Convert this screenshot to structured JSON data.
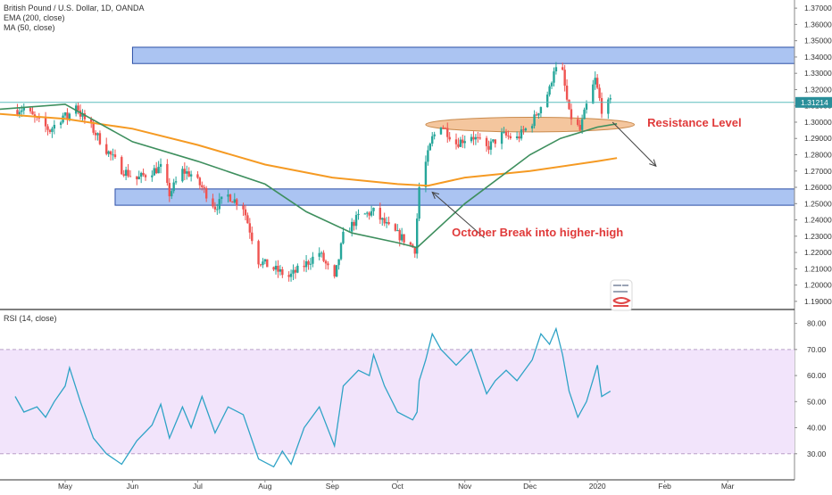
{
  "legend": {
    "symbol": "British Pound / U.S. Dollar, 1D, OANDA",
    "ema": "EMA (200, close)",
    "ma": "MA (50, close)"
  },
  "rsi_label": "RSI (14, close)",
  "colors": {
    "up": "#26a69a",
    "down": "#ef5350",
    "ema": "#f59a23",
    "ma": "#3e8f5e",
    "zone_fill": "#8fb0ee",
    "zone_stroke": "#2b4fa6",
    "ellipse_fill": "#f0b37e",
    "ellipse_stroke": "#c98a4c",
    "annotation": "#e03a3a",
    "rsi": "#2fa3c6",
    "rsi_band": "#f2e4fb",
    "price_line": "#5bbdbd",
    "price_tag": "#2a8f9a"
  },
  "chart_data": [
    {
      "type": "candlestick",
      "title": "British Pound / U.S. Dollar, 1D, OANDA",
      "x_labels": [
        "May",
        "Jun",
        "Jul",
        "Aug",
        "Sep",
        "Oct",
        "Nov",
        "Dec",
        "2020",
        "Feb",
        "Mar"
      ],
      "y_ticks": [
        "1.37000",
        "1.36000",
        "1.35000",
        "1.34000",
        "1.33000",
        "1.32000",
        "1.31000",
        "1.30000",
        "1.29000",
        "1.28000",
        "1.27000",
        "1.26000",
        "1.25000",
        "1.24000",
        "1.23000",
        "1.22000",
        "1.21000",
        "1.20000",
        "1.19000"
      ],
      "ylim": [
        1.185,
        1.375
      ],
      "last_price": "1.31214",
      "close_path": [
        [
          "2019-04-08",
          1.3075
        ],
        [
          "2019-04-12",
          1.3085
        ],
        [
          "2019-04-18",
          1.301
        ],
        [
          "2019-04-24",
          1.295
        ],
        [
          "2019-04-30",
          1.304
        ],
        [
          "2019-05-02",
          1.303
        ],
        [
          "2019-05-06",
          1.3115
        ],
        [
          "2019-05-08",
          1.305
        ],
        [
          "2019-05-14",
          1.295
        ],
        [
          "2019-05-20",
          1.283
        ],
        [
          "2019-05-27",
          1.271
        ],
        [
          "2019-06-03",
          1.265
        ],
        [
          "2019-06-10",
          1.27
        ],
        [
          "2019-06-14",
          1.272
        ],
        [
          "2019-06-18",
          1.256
        ],
        [
          "2019-06-24",
          1.27
        ],
        [
          "2019-06-28",
          1.268
        ],
        [
          "2019-07-03",
          1.26
        ],
        [
          "2019-07-09",
          1.248
        ],
        [
          "2019-07-15",
          1.255
        ],
        [
          "2019-07-22",
          1.248
        ],
        [
          "2019-07-29",
          1.215
        ],
        [
          "2019-08-05",
          1.21
        ],
        [
          "2019-08-12",
          1.205
        ],
        [
          "2019-08-19",
          1.212
        ],
        [
          "2019-08-26",
          1.22
        ],
        [
          "2019-09-02",
          1.203
        ],
        [
          "2019-09-06",
          1.23
        ],
        [
          "2019-09-13",
          1.242
        ],
        [
          "2019-09-20",
          1.245
        ],
        [
          "2019-09-27",
          1.235
        ],
        [
          "2019-10-04",
          1.228
        ],
        [
          "2019-10-09",
          1.222
        ],
        [
          "2019-10-11",
          1.26
        ],
        [
          "2019-10-17",
          1.29
        ],
        [
          "2019-10-21",
          1.299
        ],
        [
          "2019-10-28",
          1.287
        ],
        [
          "2019-11-04",
          1.292
        ],
        [
          "2019-11-11",
          1.284
        ],
        [
          "2019-11-18",
          1.292
        ],
        [
          "2019-11-25",
          1.29
        ],
        [
          "2019-12-02",
          1.3
        ],
        [
          "2019-12-06",
          1.31
        ],
        [
          "2019-12-10",
          1.32
        ],
        [
          "2019-12-12",
          1.333
        ],
        [
          "2019-12-16",
          1.33
        ],
        [
          "2019-12-19",
          1.305
        ],
        [
          "2019-12-24",
          1.295
        ],
        [
          "2019-12-27",
          1.31
        ],
        [
          "2019-12-31",
          1.326
        ],
        [
          "2020-01-03",
          1.308
        ],
        [
          "2020-01-07",
          1.3121
        ]
      ],
      "ema200": [
        [
          "2019-04-01",
          1.305
        ],
        [
          "2019-05-01",
          1.302
        ],
        [
          "2019-06-01",
          1.296
        ],
        [
          "2019-07-01",
          1.286
        ],
        [
          "2019-08-01",
          1.274
        ],
        [
          "2019-09-01",
          1.266
        ],
        [
          "2019-10-01",
          1.262
        ],
        [
          "2019-10-15",
          1.261
        ],
        [
          "2019-11-01",
          1.266
        ],
        [
          "2019-12-01",
          1.27
        ],
        [
          "2020-01-01",
          1.276
        ],
        [
          "2020-01-10",
          1.278
        ]
      ],
      "ma50": [
        [
          "2019-04-01",
          1.308
        ],
        [
          "2019-05-01",
          1.311
        ],
        [
          "2019-06-01",
          1.288
        ],
        [
          "2019-07-01",
          1.276
        ],
        [
          "2019-08-01",
          1.262
        ],
        [
          "2019-08-20",
          1.245
        ],
        [
          "2019-09-10",
          1.232
        ],
        [
          "2019-10-01",
          1.226
        ],
        [
          "2019-10-10",
          1.223
        ],
        [
          "2019-11-01",
          1.25
        ],
        [
          "2019-12-01",
          1.28
        ],
        [
          "2019-12-15",
          1.29
        ],
        [
          "2020-01-01",
          1.297
        ],
        [
          "2020-01-10",
          1.299
        ]
      ],
      "zones": [
        {
          "from": 1.336,
          "to": 1.346,
          "start": "2019-06-01",
          "end": "2020-04-01"
        },
        {
          "from": 1.249,
          "to": 1.259,
          "start": "2019-05-24",
          "end": "2020-04-01"
        }
      ],
      "ellipse": {
        "center_date": "2019-12-01",
        "center_price": 1.2985,
        "half_span_days": 48,
        "half_height": 0.0045
      },
      "annotations": [
        {
          "text": "Resistance Level",
          "date": "2020-01-24",
          "price": 1.2995
        },
        {
          "text": "October Break into higher-high",
          "date": "2019-10-26",
          "price": 1.232
        }
      ],
      "arrows": [
        {
          "from_date": "2020-01-08",
          "from_price": 1.3,
          "to_date": "2020-01-28",
          "to_price": 1.273
        },
        {
          "from_date": "2019-11-10",
          "from_price": 1.229,
          "to_date": "2019-10-17",
          "to_price": 1.257
        }
      ]
    },
    {
      "type": "line",
      "title": "RSI (14, close)",
      "y_ticks": [
        "80.00",
        "70.00",
        "60.00",
        "50.00",
        "40.00",
        "30.00"
      ],
      "ylim": [
        20,
        85
      ],
      "band": [
        30,
        70
      ],
      "series": [
        {
          "values": [
            [
              "2019-04-08",
              52
            ],
            [
              "2019-04-12",
              46
            ],
            [
              "2019-04-18",
              48
            ],
            [
              "2019-04-22",
              44
            ],
            [
              "2019-04-26",
              50
            ],
            [
              "2019-05-01",
              56
            ],
            [
              "2019-05-03",
              63
            ],
            [
              "2019-05-08",
              50
            ],
            [
              "2019-05-14",
              36
            ],
            [
              "2019-05-20",
              30
            ],
            [
              "2019-05-27",
              26
            ],
            [
              "2019-06-03",
              35
            ],
            [
              "2019-06-10",
              41
            ],
            [
              "2019-06-14",
              49
            ],
            [
              "2019-06-18",
              36
            ],
            [
              "2019-06-24",
              48
            ],
            [
              "2019-06-28",
              40
            ],
            [
              "2019-07-03",
              52
            ],
            [
              "2019-07-09",
              38
            ],
            [
              "2019-07-15",
              48
            ],
            [
              "2019-07-22",
              45
            ],
            [
              "2019-07-29",
              28
            ],
            [
              "2019-08-05",
              25
            ],
            [
              "2019-08-09",
              31
            ],
            [
              "2019-08-13",
              26
            ],
            [
              "2019-08-19",
              40
            ],
            [
              "2019-08-26",
              48
            ],
            [
              "2019-09-02",
              33
            ],
            [
              "2019-09-06",
              56
            ],
            [
              "2019-09-13",
              62
            ],
            [
              "2019-09-18",
              60
            ],
            [
              "2019-09-20",
              68
            ],
            [
              "2019-09-25",
              56
            ],
            [
              "2019-10-01",
              46
            ],
            [
              "2019-10-08",
              43
            ],
            [
              "2019-10-10",
              46
            ],
            [
              "2019-10-11",
              58
            ],
            [
              "2019-10-14",
              66
            ],
            [
              "2019-10-17",
              76
            ],
            [
              "2019-10-21",
              70
            ],
            [
              "2019-10-28",
              64
            ],
            [
              "2019-11-04",
              70
            ],
            [
              "2019-11-11",
              53
            ],
            [
              "2019-11-15",
              58
            ],
            [
              "2019-11-20",
              62
            ],
            [
              "2019-11-25",
              58
            ],
            [
              "2019-12-02",
              66
            ],
            [
              "2019-12-06",
              76
            ],
            [
              "2019-12-10",
              72
            ],
            [
              "2019-12-13",
              78
            ],
            [
              "2019-12-16",
              68
            ],
            [
              "2019-12-19",
              54
            ],
            [
              "2019-12-23",
              44
            ],
            [
              "2019-12-27",
              50
            ],
            [
              "2020-01-01",
              64
            ],
            [
              "2020-01-03",
              52
            ],
            [
              "2020-01-07",
              54
            ]
          ]
        }
      ]
    }
  ]
}
